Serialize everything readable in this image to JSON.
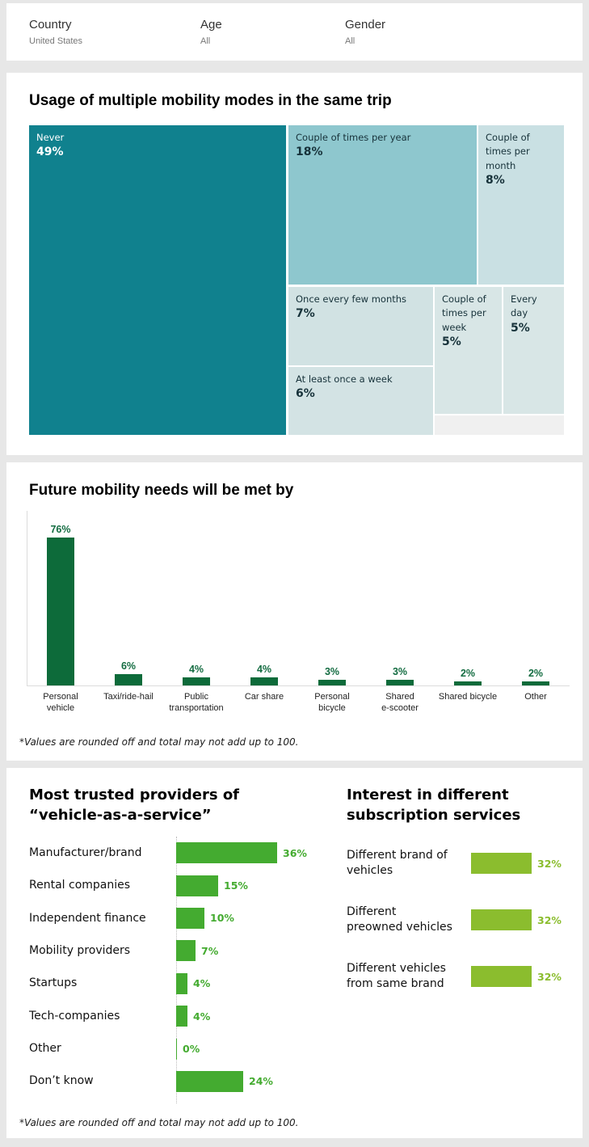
{
  "filters": {
    "country": {
      "label": "Country",
      "value": "United States"
    },
    "age": {
      "label": "Age",
      "value": "All"
    },
    "gender": {
      "label": "Gender",
      "value": "All"
    }
  },
  "chart_data": [
    {
      "type": "treemap",
      "title": "Usage of multiple mobility modes in the same trip",
      "unit": "%",
      "cells": [
        {
          "label": "Never",
          "value": 49,
          "color": "#10818e",
          "text_color": "#ffffff"
        },
        {
          "label": "Couple of times per year",
          "value": 18,
          "color": "#8ec7ce",
          "text_color": "#17323a"
        },
        {
          "label": "Couple of times per month",
          "value": 8,
          "color": "#c9e0e3",
          "text_color": "#17323a"
        },
        {
          "label": "Once every few months",
          "value": 7,
          "color": "#d1e2e3",
          "text_color": "#17323a"
        },
        {
          "label": "At least once a week",
          "value": 6,
          "color": "#d3e3e4",
          "text_color": "#17323a"
        },
        {
          "label": "Couple of times per week",
          "value": 5,
          "color": "#d8e6e6",
          "text_color": "#17323a"
        },
        {
          "label": "Every day",
          "value": 5,
          "color": "#d8e6e6",
          "text_color": "#17323a"
        }
      ]
    },
    {
      "type": "bar",
      "title": "Future mobility needs will be met by",
      "categories": [
        "Personal vehicle",
        "Taxi/ride-hail",
        "Public transportation",
        "Car share",
        "Personal bicycle",
        "Shared e-scooter",
        "Shared bicycle",
        "Other"
      ],
      "category_lines": [
        [
          "Personal",
          "vehicle"
        ],
        [
          "Taxi/ride-hail"
        ],
        [
          "Public",
          "transportation"
        ],
        [
          "Car share"
        ],
        [
          "Personal",
          "bicycle"
        ],
        [
          "Shared",
          "e-scooter"
        ],
        [
          "Shared bicycle"
        ],
        [
          "Other"
        ]
      ],
      "values": [
        76,
        6,
        4,
        4,
        3,
        3,
        2,
        2
      ],
      "unit": "%",
      "ylim": [
        0,
        80
      ],
      "grid": false,
      "bar_color": "#0d6b3a",
      "value_label_color": "#136c41",
      "footnote": "*Values are rounded off and total may not add up to 100."
    },
    {
      "type": "bar-horizontal",
      "title": "Most trusted providers of\n“vehicle-as-a-service”",
      "categories": [
        "Manufacturer/brand",
        "Rental companies",
        "Independent finance",
        "Mobility providers",
        "Startups",
        "Tech-companies",
        "Other",
        "Don’t know"
      ],
      "category_lines": [
        [
          "Manufacturer/brand"
        ],
        [
          "Rental companies"
        ],
        [
          "Independent finance"
        ],
        [
          "Mobility providers"
        ],
        [
          "Startups"
        ],
        [
          "Tech-companies"
        ],
        [
          "Other"
        ],
        [
          "Don’t know"
        ]
      ],
      "values": [
        36,
        15,
        10,
        7,
        4,
        4,
        0,
        24
      ],
      "unit": "%",
      "bar_color": "#44ab30",
      "value_label_color": "#44ab30",
      "footnote": "*Values are rounded off and total may not add up to 100."
    },
    {
      "type": "bar-horizontal",
      "title": "Interest in different\nsubscription services",
      "categories": [
        "Different brand of vehicles",
        "Different preowned vehicles",
        "Different vehicles from same brand"
      ],
      "category_lines": [
        [
          "Different brand of",
          "vehicles"
        ],
        [
          "Different",
          "preowned vehicles"
        ],
        [
          "Different vehicles",
          "from same brand"
        ]
      ],
      "values": [
        32,
        32,
        32
      ],
      "unit": "%",
      "bar_color": "#8bbd2e",
      "value_label_color": "#8bbd2e"
    }
  ]
}
